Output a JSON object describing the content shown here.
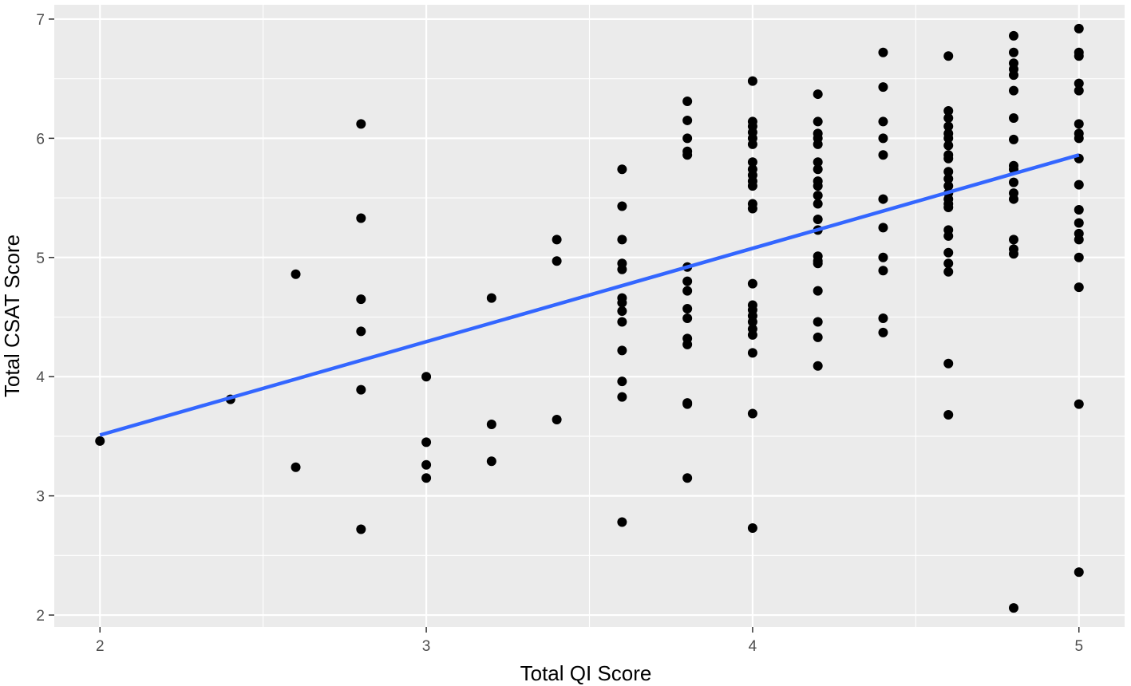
{
  "chart_data": {
    "type": "scatter",
    "title": "",
    "xlabel": "Total QI Score",
    "ylabel": "Total CSAT Score",
    "xlim": [
      1.86,
      5.14
    ],
    "ylim": [
      1.9,
      7.12
    ],
    "x_ticks": [
      2,
      3,
      4,
      5
    ],
    "y_ticks": [
      2,
      3,
      4,
      5,
      6,
      7
    ],
    "x_tick_labels": [
      "2",
      "3",
      "4",
      "5"
    ],
    "y_tick_labels": [
      "2",
      "3",
      "4",
      "5",
      "6",
      "7"
    ],
    "grid": true,
    "background": "#ebebeb",
    "point_color": "#000000",
    "line_color": "#3366ff",
    "points": [
      {
        "x": 2.0,
        "y": 3.46
      },
      {
        "x": 2.4,
        "y": 3.81
      },
      {
        "x": 2.6,
        "y": 4.86
      },
      {
        "x": 2.6,
        "y": 3.24
      },
      {
        "x": 2.8,
        "y": 6.12
      },
      {
        "x": 2.8,
        "y": 5.33
      },
      {
        "x": 2.8,
        "y": 4.65
      },
      {
        "x": 2.8,
        "y": 4.38
      },
      {
        "x": 2.8,
        "y": 3.89
      },
      {
        "x": 2.8,
        "y": 2.72
      },
      {
        "x": 3.0,
        "y": 4.0
      },
      {
        "x": 3.0,
        "y": 3.45
      },
      {
        "x": 3.0,
        "y": 3.26
      },
      {
        "x": 3.0,
        "y": 3.15
      },
      {
        "x": 3.2,
        "y": 4.66
      },
      {
        "x": 3.2,
        "y": 3.6
      },
      {
        "x": 3.2,
        "y": 3.29
      },
      {
        "x": 3.4,
        "y": 5.15
      },
      {
        "x": 3.4,
        "y": 4.97
      },
      {
        "x": 3.4,
        "y": 3.64
      },
      {
        "x": 3.6,
        "y": 5.74
      },
      {
        "x": 3.6,
        "y": 5.43
      },
      {
        "x": 3.6,
        "y": 5.15
      },
      {
        "x": 3.6,
        "y": 4.95
      },
      {
        "x": 3.6,
        "y": 4.9
      },
      {
        "x": 3.6,
        "y": 4.66
      },
      {
        "x": 3.6,
        "y": 4.62
      },
      {
        "x": 3.6,
        "y": 4.55
      },
      {
        "x": 3.6,
        "y": 4.46
      },
      {
        "x": 3.6,
        "y": 4.22
      },
      {
        "x": 3.6,
        "y": 3.96
      },
      {
        "x": 3.6,
        "y": 3.83
      },
      {
        "x": 3.6,
        "y": 2.78
      },
      {
        "x": 3.8,
        "y": 6.31
      },
      {
        "x": 3.8,
        "y": 6.15
      },
      {
        "x": 3.8,
        "y": 6.0
      },
      {
        "x": 3.8,
        "y": 5.89
      },
      {
        "x": 3.8,
        "y": 5.86
      },
      {
        "x": 3.8,
        "y": 4.92
      },
      {
        "x": 3.8,
        "y": 4.8
      },
      {
        "x": 3.8,
        "y": 4.72
      },
      {
        "x": 3.8,
        "y": 4.57
      },
      {
        "x": 3.8,
        "y": 4.49
      },
      {
        "x": 3.8,
        "y": 4.32
      },
      {
        "x": 3.8,
        "y": 4.27
      },
      {
        "x": 3.8,
        "y": 3.78
      },
      {
        "x": 3.8,
        "y": 3.77
      },
      {
        "x": 3.8,
        "y": 3.15
      },
      {
        "x": 4.0,
        "y": 6.48
      },
      {
        "x": 4.0,
        "y": 6.14
      },
      {
        "x": 4.0,
        "y": 6.1
      },
      {
        "x": 4.0,
        "y": 6.05
      },
      {
        "x": 4.0,
        "y": 6.0
      },
      {
        "x": 4.0,
        "y": 5.95
      },
      {
        "x": 4.0,
        "y": 5.8
      },
      {
        "x": 4.0,
        "y": 5.74
      },
      {
        "x": 4.0,
        "y": 5.69
      },
      {
        "x": 4.0,
        "y": 5.64
      },
      {
        "x": 4.0,
        "y": 5.6
      },
      {
        "x": 4.0,
        "y": 5.45
      },
      {
        "x": 4.0,
        "y": 5.41
      },
      {
        "x": 4.0,
        "y": 4.78
      },
      {
        "x": 4.0,
        "y": 4.6
      },
      {
        "x": 4.0,
        "y": 4.56
      },
      {
        "x": 4.0,
        "y": 4.51
      },
      {
        "x": 4.0,
        "y": 4.46
      },
      {
        "x": 4.0,
        "y": 4.4
      },
      {
        "x": 4.0,
        "y": 4.35
      },
      {
        "x": 4.0,
        "y": 4.2
      },
      {
        "x": 4.0,
        "y": 3.69
      },
      {
        "x": 4.0,
        "y": 2.73
      },
      {
        "x": 4.2,
        "y": 6.37
      },
      {
        "x": 4.2,
        "y": 6.14
      },
      {
        "x": 4.2,
        "y": 6.04
      },
      {
        "x": 4.2,
        "y": 6.0
      },
      {
        "x": 4.2,
        "y": 5.95
      },
      {
        "x": 4.2,
        "y": 5.8
      },
      {
        "x": 4.2,
        "y": 5.74
      },
      {
        "x": 4.2,
        "y": 5.64
      },
      {
        "x": 4.2,
        "y": 5.6
      },
      {
        "x": 4.2,
        "y": 5.52
      },
      {
        "x": 4.2,
        "y": 5.45
      },
      {
        "x": 4.2,
        "y": 5.32
      },
      {
        "x": 4.2,
        "y": 5.23
      },
      {
        "x": 4.2,
        "y": 5.01
      },
      {
        "x": 4.2,
        "y": 4.97
      },
      {
        "x": 4.2,
        "y": 4.95
      },
      {
        "x": 4.2,
        "y": 4.72
      },
      {
        "x": 4.2,
        "y": 4.46
      },
      {
        "x": 4.2,
        "y": 4.33
      },
      {
        "x": 4.2,
        "y": 4.09
      },
      {
        "x": 4.4,
        "y": 6.72
      },
      {
        "x": 4.4,
        "y": 6.43
      },
      {
        "x": 4.4,
        "y": 6.14
      },
      {
        "x": 4.4,
        "y": 6.0
      },
      {
        "x": 4.4,
        "y": 5.86
      },
      {
        "x": 4.4,
        "y": 5.49
      },
      {
        "x": 4.4,
        "y": 5.25
      },
      {
        "x": 4.4,
        "y": 5.0
      },
      {
        "x": 4.4,
        "y": 4.89
      },
      {
        "x": 4.4,
        "y": 4.49
      },
      {
        "x": 4.4,
        "y": 4.37
      },
      {
        "x": 4.6,
        "y": 6.69
      },
      {
        "x": 4.6,
        "y": 6.23
      },
      {
        "x": 4.6,
        "y": 6.17
      },
      {
        "x": 4.6,
        "y": 6.1
      },
      {
        "x": 4.6,
        "y": 6.04
      },
      {
        "x": 4.6,
        "y": 6.0
      },
      {
        "x": 4.6,
        "y": 5.94
      },
      {
        "x": 4.6,
        "y": 5.86
      },
      {
        "x": 4.6,
        "y": 5.83
      },
      {
        "x": 4.6,
        "y": 5.72
      },
      {
        "x": 4.6,
        "y": 5.66
      },
      {
        "x": 4.6,
        "y": 5.6
      },
      {
        "x": 4.6,
        "y": 5.54
      },
      {
        "x": 4.6,
        "y": 5.49
      },
      {
        "x": 4.6,
        "y": 5.45
      },
      {
        "x": 4.6,
        "y": 5.42
      },
      {
        "x": 4.6,
        "y": 5.23
      },
      {
        "x": 4.6,
        "y": 5.18
      },
      {
        "x": 4.6,
        "y": 5.04
      },
      {
        "x": 4.6,
        "y": 4.95
      },
      {
        "x": 4.6,
        "y": 4.88
      },
      {
        "x": 4.6,
        "y": 4.11
      },
      {
        "x": 4.6,
        "y": 3.68
      },
      {
        "x": 4.8,
        "y": 6.86
      },
      {
        "x": 4.8,
        "y": 6.72
      },
      {
        "x": 4.8,
        "y": 6.63
      },
      {
        "x": 4.8,
        "y": 6.58
      },
      {
        "x": 4.8,
        "y": 6.53
      },
      {
        "x": 4.8,
        "y": 6.4
      },
      {
        "x": 4.8,
        "y": 6.17
      },
      {
        "x": 4.8,
        "y": 5.99
      },
      {
        "x": 4.8,
        "y": 5.77
      },
      {
        "x": 4.8,
        "y": 5.74
      },
      {
        "x": 4.8,
        "y": 5.63
      },
      {
        "x": 4.8,
        "y": 5.54
      },
      {
        "x": 4.8,
        "y": 5.49
      },
      {
        "x": 4.8,
        "y": 5.15
      },
      {
        "x": 4.8,
        "y": 5.07
      },
      {
        "x": 4.8,
        "y": 5.03
      },
      {
        "x": 4.8,
        "y": 2.06
      },
      {
        "x": 5.0,
        "y": 6.92
      },
      {
        "x": 5.0,
        "y": 6.72
      },
      {
        "x": 5.0,
        "y": 6.69
      },
      {
        "x": 5.0,
        "y": 6.46
      },
      {
        "x": 5.0,
        "y": 6.4
      },
      {
        "x": 5.0,
        "y": 6.12
      },
      {
        "x": 5.0,
        "y": 6.04
      },
      {
        "x": 5.0,
        "y": 6.0
      },
      {
        "x": 5.0,
        "y": 5.83
      },
      {
        "x": 5.0,
        "y": 5.61
      },
      {
        "x": 5.0,
        "y": 5.4
      },
      {
        "x": 5.0,
        "y": 5.29
      },
      {
        "x": 5.0,
        "y": 5.2
      },
      {
        "x": 5.0,
        "y": 5.15
      },
      {
        "x": 5.0,
        "y": 5.0
      },
      {
        "x": 5.0,
        "y": 4.75
      },
      {
        "x": 5.0,
        "y": 3.77
      },
      {
        "x": 5.0,
        "y": 2.36
      }
    ],
    "trend_line": {
      "x": [
        2.0,
        5.0
      ],
      "y": [
        3.51,
        5.86
      ]
    }
  }
}
